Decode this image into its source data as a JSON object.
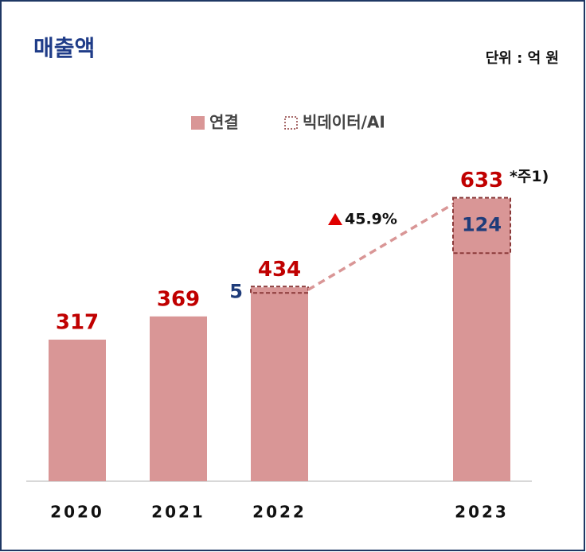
{
  "chart_data": {
    "type": "bar",
    "title": "매출액",
    "subtitle": "단위 : 억 원",
    "categories": [
      "2020",
      "2021",
      "2022",
      "2023"
    ],
    "series": [
      {
        "name": "연결",
        "color": "#d99696",
        "values": [
          317,
          369,
          434,
          633
        ]
      },
      {
        "name": "빅데이터/AI",
        "color": "#8b3a3a",
        "values": [
          null,
          null,
          5,
          124
        ]
      }
    ],
    "annotations": {
      "growth": "45.9%",
      "note": "*주1)"
    },
    "legend": "top"
  }
}
